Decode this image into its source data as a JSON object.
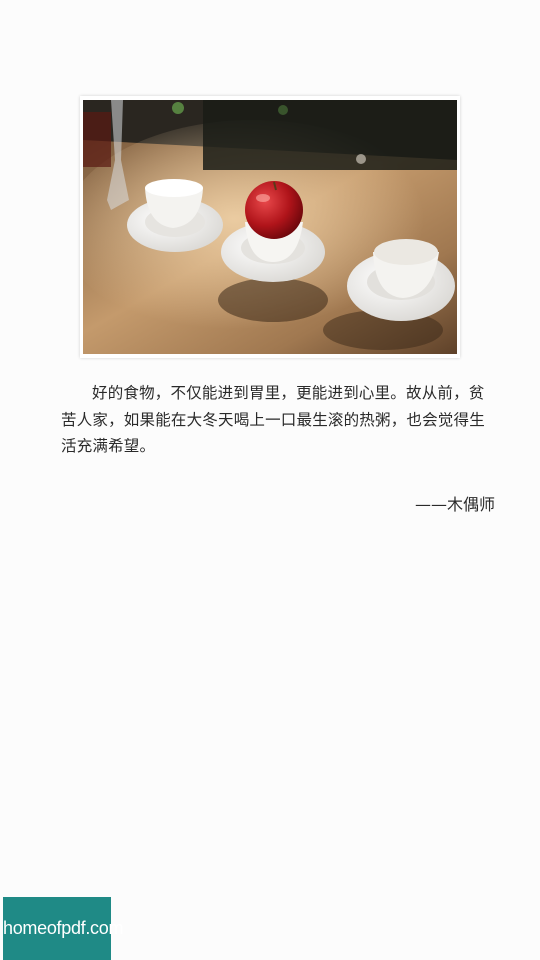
{
  "article": {
    "image_alt": "",
    "quote_text": "好的食物，不仅能进到胃里，更能进到心里。故从前，贫苦人家，如果能在大冬天喝上一口最生滚的热粥，也会觉得生活充满希望。",
    "author": "——木偶师"
  },
  "watermark": {
    "text": "homeofpdf.com"
  }
}
